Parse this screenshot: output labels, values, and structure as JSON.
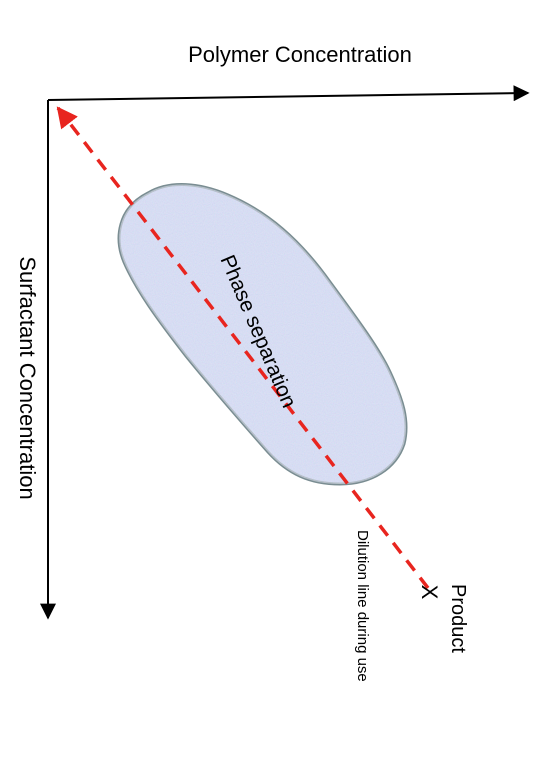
{
  "diagram": {
    "x_axis_label": "Polymer Concentration",
    "y_axis_label": "Surfactant Concentration",
    "region_label": "Phase separation",
    "dilution_line_label": "Dilution line during use",
    "product_label": "Product",
    "product_marker": "X"
  },
  "colors": {
    "axis": "#000000",
    "dilution_line": "#e8251f",
    "region_fill": "#c4cff0",
    "region_stroke": "#7a8d92"
  }
}
